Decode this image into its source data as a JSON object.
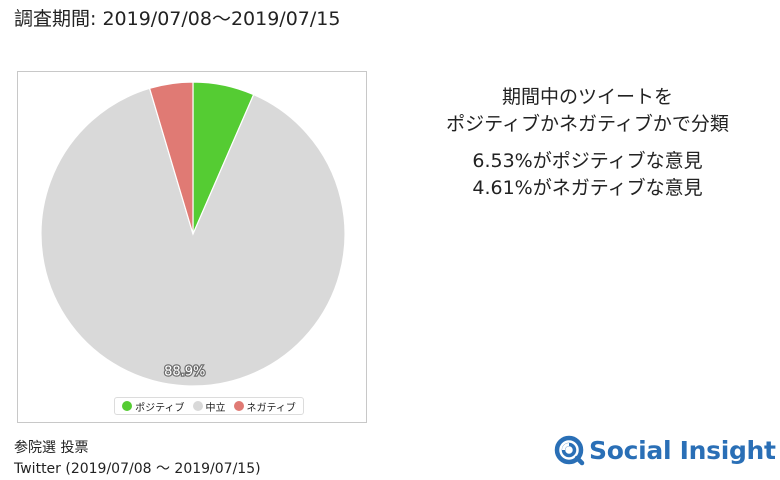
{
  "header": {
    "period_label": "調査期間: 2019/07/08〜2019/07/15"
  },
  "summary": {
    "line1": "期間中のツイートを",
    "line2": "ポジティブかネガティブかで分類",
    "positive_text": "6.53%がポジティブな意見",
    "negative_text": "4.61%がネガティブな意見"
  },
  "source": {
    "line1": "参院選 投票",
    "line2": "Twitter (2019/07/08 ～ 2019/07/15)"
  },
  "brand": {
    "name": "Social Insight",
    "color": "#2a6fb6"
  },
  "chart_data": {
    "type": "pie",
    "slices": [
      {
        "name": "ポジティブ",
        "value": 6.53,
        "color": "#55cc33"
      },
      {
        "name": "中立",
        "value": 88.86,
        "color": "#d9d9d9"
      },
      {
        "name": "ネガティブ",
        "value": 4.61,
        "color": "#e07a74"
      }
    ],
    "data_labels": [
      {
        "slice": "中立",
        "text": "88.9%"
      }
    ],
    "legend": {
      "position": "bottom",
      "items": [
        "ポジティブ",
        "中立",
        "ネガティブ"
      ]
    },
    "start_angle": "12 o'clock",
    "direction": "clockwise"
  }
}
